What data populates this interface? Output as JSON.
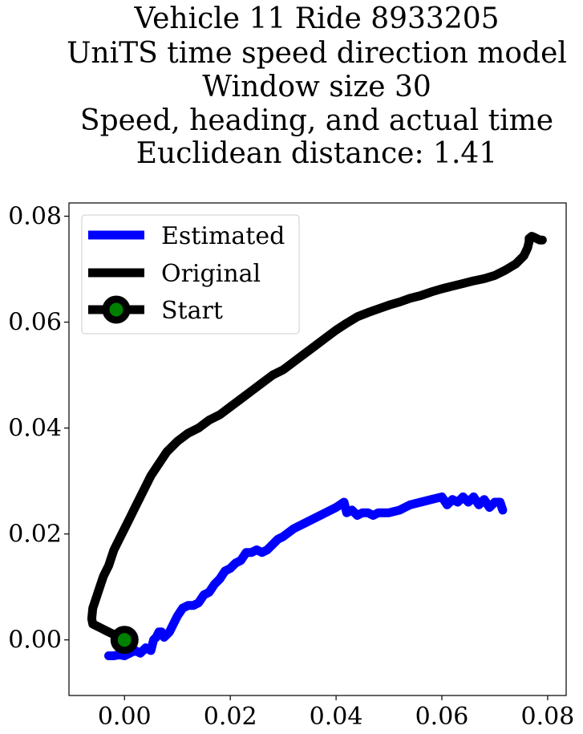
{
  "chart_data": {
    "type": "line",
    "title_lines": [
      "Vehicle 11 Ride 8933205",
      "UniTS time speed direction model",
      "Window size 30",
      "Speed, heading, and actual time",
      "Euclidean distance: 1.41"
    ],
    "xlabel": "",
    "ylabel": "",
    "xlim": [
      -0.0105,
      0.0835
    ],
    "ylim": [
      -0.0105,
      0.0825
    ],
    "xticks": [
      0.0,
      0.02,
      0.04,
      0.06,
      0.08
    ],
    "xtick_labels": [
      "0.00",
      "0.02",
      "0.04",
      "0.06",
      "0.08"
    ],
    "yticks": [
      0.0,
      0.02,
      0.04,
      0.06,
      0.08
    ],
    "ytick_labels": [
      "0.00",
      "0.02",
      "0.04",
      "0.06",
      "0.08"
    ],
    "grid": false,
    "legend_position": "top-left",
    "series": [
      {
        "name": "Estimated",
        "color": "#0000ff",
        "x": [
          -0.003,
          -0.002,
          -0.001,
          0.0,
          0.001,
          0.002,
          0.003,
          0.004,
          0.005,
          0.0055,
          0.006,
          0.0065,
          0.007,
          0.0075,
          0.008,
          0.0085,
          0.009,
          0.0095,
          0.01,
          0.011,
          0.012,
          0.013,
          0.014,
          0.015,
          0.016,
          0.017,
          0.018,
          0.019,
          0.02,
          0.021,
          0.022,
          0.023,
          0.024,
          0.025,
          0.026,
          0.027,
          0.028,
          0.029,
          0.03,
          0.032,
          0.034,
          0.036,
          0.038,
          0.04,
          0.0415,
          0.042,
          0.043,
          0.044,
          0.045,
          0.046,
          0.047,
          0.048,
          0.05,
          0.052,
          0.054,
          0.056,
          0.058,
          0.06,
          0.061,
          0.062,
          0.063,
          0.064,
          0.065,
          0.066,
          0.067,
          0.068,
          0.069,
          0.07,
          0.071,
          0.0715
        ],
        "y": [
          -0.003,
          -0.003,
          -0.0028,
          -0.003,
          -0.0025,
          -0.002,
          -0.0025,
          -0.0015,
          -0.002,
          0.0,
          0.0005,
          0.0015,
          0.0015,
          0.0005,
          0.001,
          0.0015,
          0.0025,
          0.0035,
          0.0045,
          0.006,
          0.0065,
          0.0065,
          0.007,
          0.0085,
          0.009,
          0.0105,
          0.0115,
          0.013,
          0.0135,
          0.0145,
          0.015,
          0.0165,
          0.0165,
          0.017,
          0.0165,
          0.017,
          0.018,
          0.019,
          0.0195,
          0.021,
          0.022,
          0.023,
          0.024,
          0.025,
          0.026,
          0.024,
          0.0245,
          0.0235,
          0.024,
          0.024,
          0.0235,
          0.024,
          0.024,
          0.0245,
          0.0255,
          0.026,
          0.0265,
          0.027,
          0.0255,
          0.0265,
          0.026,
          0.027,
          0.026,
          0.027,
          0.0255,
          0.0265,
          0.025,
          0.026,
          0.026,
          0.0245
        ]
      },
      {
        "name": "Original",
        "color": "#000000",
        "x": [
          0.0,
          -0.002,
          -0.004,
          -0.006,
          -0.0062,
          -0.006,
          -0.0055,
          -0.005,
          -0.0045,
          -0.004,
          -0.0035,
          -0.003,
          -0.0025,
          -0.002,
          -0.001,
          0.0,
          0.001,
          0.002,
          0.003,
          0.004,
          0.005,
          0.006,
          0.007,
          0.008,
          0.01,
          0.012,
          0.014,
          0.016,
          0.018,
          0.02,
          0.022,
          0.024,
          0.026,
          0.028,
          0.03,
          0.032,
          0.034,
          0.036,
          0.038,
          0.04,
          0.042,
          0.044,
          0.046,
          0.048,
          0.05,
          0.052,
          0.054,
          0.056,
          0.058,
          0.06,
          0.062,
          0.064,
          0.066,
          0.068,
          0.07,
          0.072,
          0.074,
          0.0755,
          0.0762,
          0.0765,
          0.0765,
          0.077,
          0.0775,
          0.0785,
          0.079
        ],
        "y": [
          0.0,
          0.001,
          0.002,
          0.003,
          0.004,
          0.006,
          0.0075,
          0.009,
          0.0105,
          0.012,
          0.013,
          0.014,
          0.0155,
          0.017,
          0.019,
          0.021,
          0.023,
          0.025,
          0.027,
          0.029,
          0.031,
          0.0325,
          0.034,
          0.0355,
          0.0375,
          0.039,
          0.04,
          0.0415,
          0.0425,
          0.044,
          0.0455,
          0.047,
          0.0485,
          0.05,
          0.051,
          0.0525,
          0.054,
          0.0555,
          0.057,
          0.0585,
          0.0598,
          0.061,
          0.0618,
          0.0625,
          0.0632,
          0.0638,
          0.0645,
          0.065,
          0.0657,
          0.0663,
          0.0668,
          0.0673,
          0.0678,
          0.0682,
          0.0688,
          0.0698,
          0.071,
          0.0725,
          0.074,
          0.0752,
          0.0758,
          0.0762,
          0.076,
          0.0755,
          0.0755
        ]
      },
      {
        "name": "Start",
        "color": "#008000",
        "edge_color": "#000000",
        "x": [
          0.0
        ],
        "y": [
          0.0
        ]
      }
    ]
  }
}
